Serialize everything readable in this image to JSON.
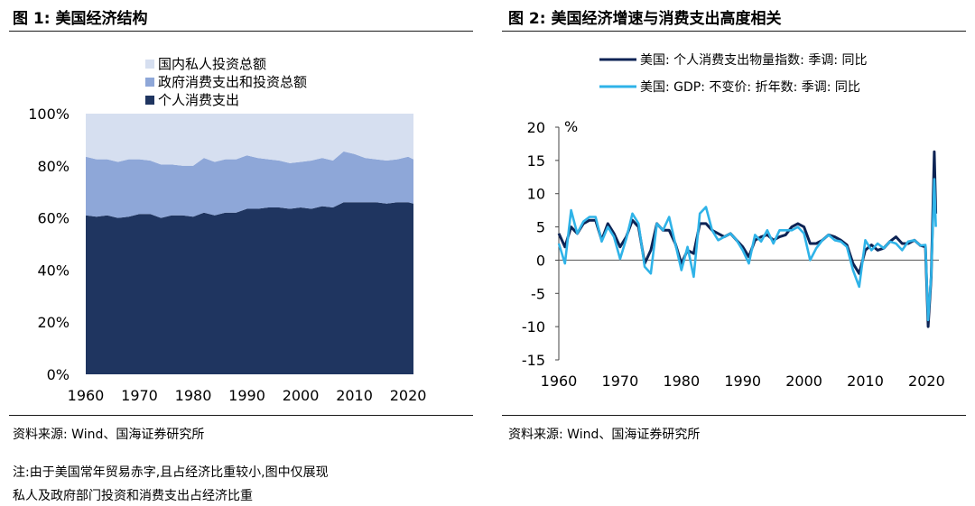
{
  "fig1": {
    "title": "图 1:  美国经济结构",
    "source": "资料来源:  Wind、国海证券研究所",
    "note_line1": "注:由于美国常年贸易赤字,且占经济比重较小,图中仅展现",
    "note_line2": "私人及政府部门投资和消费支出占经济比重"
  },
  "fig2": {
    "title": "图 2:  美国经济增速与消费支出高度相关",
    "source": "资料来源:  Wind、国海证券研究所"
  },
  "colors": {
    "private_investment": "#d6dff0",
    "government": "#8ea7d8",
    "consumption": "#1f3560",
    "pce_line": "#0d2354",
    "gdp_line": "#2fb3e8"
  },
  "chart_data": [
    {
      "type": "area",
      "stacked": true,
      "x": [
        1960,
        1962,
        1964,
        1966,
        1968,
        1970,
        1972,
        1974,
        1976,
        1978,
        1980,
        1982,
        1984,
        1986,
        1988,
        1990,
        1992,
        1994,
        1996,
        1998,
        2000,
        2002,
        2004,
        2006,
        2008,
        2010,
        2012,
        2014,
        2016,
        2018,
        2020,
        2021
      ],
      "series": [
        {
          "name": "个人消费支出",
          "color_key": "consumption",
          "values": [
            61,
            60.5,
            61,
            60,
            60.5,
            61.5,
            61.5,
            60,
            61,
            61,
            60.5,
            62,
            61,
            62,
            62,
            63.5,
            63.5,
            64,
            64,
            63.5,
            64,
            63.5,
            64.5,
            64,
            66,
            66,
            66,
            66,
            65.5,
            66,
            66,
            65.5
          ]
        },
        {
          "name": "政府消费支出和投资总额",
          "color_key": "government",
          "values": [
            22.5,
            22,
            21.5,
            21.5,
            22,
            21,
            20.5,
            20.5,
            19.5,
            19,
            19.5,
            21,
            20.5,
            20.5,
            20.5,
            20.5,
            19.5,
            18.5,
            18,
            17.5,
            17.5,
            18.5,
            18.5,
            18,
            19.5,
            18.5,
            17,
            16.5,
            16.5,
            16.5,
            17.5,
            17
          ]
        },
        {
          "name": "国内私人投资总额",
          "color_key": "private_investment",
          "values": [
            16.5,
            17.5,
            17.5,
            18.5,
            17.5,
            17.5,
            18,
            19.5,
            19.5,
            20,
            20,
            17,
            18.5,
            17.5,
            17.5,
            16,
            17,
            17.5,
            18,
            19,
            18.5,
            18,
            17,
            18,
            14.5,
            15.5,
            17,
            17.5,
            18,
            17.5,
            16.5,
            17.5
          ]
        }
      ],
      "legend": [
        "国内私人投资总额",
        "政府消费支出和投资总额",
        "个人消费支出"
      ],
      "legend_position": "top",
      "y_ticks": [
        "0%",
        "20%",
        "40%",
        "60%",
        "80%",
        "100%"
      ],
      "x_ticks": [
        "1960",
        "1970",
        "1980",
        "1990",
        "2000",
        "2010",
        "2020"
      ],
      "xlim": [
        1960,
        2021.5
      ],
      "ylim": [
        0,
        100
      ]
    },
    {
      "type": "line",
      "ylabel": "%",
      "series": [
        {
          "name": "美国: 个人消费支出物量指数: 季调: 同比",
          "color_key": "pce_line",
          "points": [
            [
              1960,
              4
            ],
            [
              1961,
              2
            ],
            [
              1962,
              5
            ],
            [
              1963,
              4
            ],
            [
              1964,
              5.5
            ],
            [
              1965,
              6
            ],
            [
              1966,
              6
            ],
            [
              1967,
              3
            ],
            [
              1968,
              5.5
            ],
            [
              1969,
              4
            ],
            [
              1970,
              2
            ],
            [
              1971,
              3.5
            ],
            [
              1972,
              6
            ],
            [
              1973,
              5
            ],
            [
              1974,
              -0.5
            ],
            [
              1975,
              1.5
            ],
            [
              1976,
              5.5
            ],
            [
              1977,
              4.5
            ],
            [
              1978,
              4.5
            ],
            [
              1979,
              2.5
            ],
            [
              1980,
              -0.5
            ],
            [
              1981,
              1.5
            ],
            [
              1982,
              1
            ],
            [
              1983,
              5.5
            ],
            [
              1984,
              5.5
            ],
            [
              1985,
              4.5
            ],
            [
              1986,
              4
            ],
            [
              1987,
              3.5
            ],
            [
              1988,
              4
            ],
            [
              1989,
              3
            ],
            [
              1990,
              2
            ],
            [
              1991,
              0.5
            ],
            [
              1992,
              3
            ],
            [
              1993,
              3.5
            ],
            [
              1994,
              3.8
            ],
            [
              1995,
              3
            ],
            [
              1996,
              3.5
            ],
            [
              1997,
              3.8
            ],
            [
              1998,
              5
            ],
            [
              1999,
              5.5
            ],
            [
              2000,
              5
            ],
            [
              2001,
              2.5
            ],
            [
              2002,
              2.5
            ],
            [
              2003,
              3
            ],
            [
              2004,
              3.8
            ],
            [
              2005,
              3.5
            ],
            [
              2006,
              3
            ],
            [
              2007,
              2.3
            ],
            [
              2008,
              -0.5
            ],
            [
              2009,
              -2
            ],
            [
              2010,
              1.5
            ],
            [
              2011,
              2.3
            ],
            [
              2012,
              1.5
            ],
            [
              2013,
              1.8
            ],
            [
              2014,
              2.8
            ],
            [
              2015,
              3.5
            ],
            [
              2016,
              2.5
            ],
            [
              2017,
              2.5
            ],
            [
              2018,
              3
            ],
            [
              2019,
              2.2
            ],
            [
              2019.8,
              2
            ],
            [
              2020.25,
              -10
            ],
            [
              2020.75,
              -2.5
            ],
            [
              2021.25,
              16.3
            ],
            [
              2021.5,
              7
            ]
          ]
        },
        {
          "name": "美国: GDP: 不变价: 折年数: 季调: 同比",
          "color_key": "gdp_line",
          "points": [
            [
              1960,
              2.5
            ],
            [
              1961,
              -0.5
            ],
            [
              1962,
              7.5
            ],
            [
              1963,
              4
            ],
            [
              1964,
              5.8
            ],
            [
              1965,
              6.5
            ],
            [
              1966,
              6.5
            ],
            [
              1967,
              2.8
            ],
            [
              1968,
              5
            ],
            [
              1969,
              3.5
            ],
            [
              1970,
              0.2
            ],
            [
              1971,
              3.2
            ],
            [
              1972,
              7
            ],
            [
              1973,
              5.5
            ],
            [
              1974,
              -1
            ],
            [
              1975,
              -2
            ],
            [
              1976,
              5.5
            ],
            [
              1977,
              4.5
            ],
            [
              1978,
              6.5
            ],
            [
              1979,
              2.5
            ],
            [
              1980,
              -1.5
            ],
            [
              1981,
              2
            ],
            [
              1982,
              -2.5
            ],
            [
              1983,
              7
            ],
            [
              1984,
              8
            ],
            [
              1985,
              4.5
            ],
            [
              1986,
              3
            ],
            [
              1987,
              3.5
            ],
            [
              1988,
              4
            ],
            [
              1989,
              3
            ],
            [
              1990,
              1.5
            ],
            [
              1991,
              -0.5
            ],
            [
              1992,
              3.8
            ],
            [
              1993,
              2.8
            ],
            [
              1994,
              4.5
            ],
            [
              1995,
              2.5
            ],
            [
              1996,
              4.5
            ],
            [
              1997,
              4.5
            ],
            [
              1998,
              4.5
            ],
            [
              1999,
              5
            ],
            [
              2000,
              4
            ],
            [
              2001,
              0
            ],
            [
              2002,
              1.8
            ],
            [
              2003,
              3
            ],
            [
              2004,
              3.8
            ],
            [
              2005,
              3
            ],
            [
              2006,
              2.8
            ],
            [
              2007,
              2
            ],
            [
              2008,
              -1.5
            ],
            [
              2009,
              -4
            ],
            [
              2010,
              3
            ],
            [
              2011,
              1.5
            ],
            [
              2012,
              2.5
            ],
            [
              2013,
              1.8
            ],
            [
              2014,
              2.8
            ],
            [
              2015,
              2.5
            ],
            [
              2016,
              1.5
            ],
            [
              2017,
              2.8
            ],
            [
              2018,
              3
            ],
            [
              2019,
              2.2
            ],
            [
              2019.8,
              2.3
            ],
            [
              2020.25,
              -9
            ],
            [
              2020.75,
              -2.3
            ],
            [
              2021.25,
              12.2
            ],
            [
              2021.5,
              5
            ]
          ]
        }
      ],
      "legend_position": "top",
      "y_ticks": [
        "20",
        "15",
        "10",
        "5",
        "0",
        "-5",
        "-10",
        "-15"
      ],
      "x_ticks": [
        "1960",
        "1970",
        "1980",
        "1990",
        "2000",
        "2010",
        "2020"
      ],
      "xlim": [
        1960,
        2022
      ],
      "ylim": [
        -15,
        20
      ]
    }
  ]
}
